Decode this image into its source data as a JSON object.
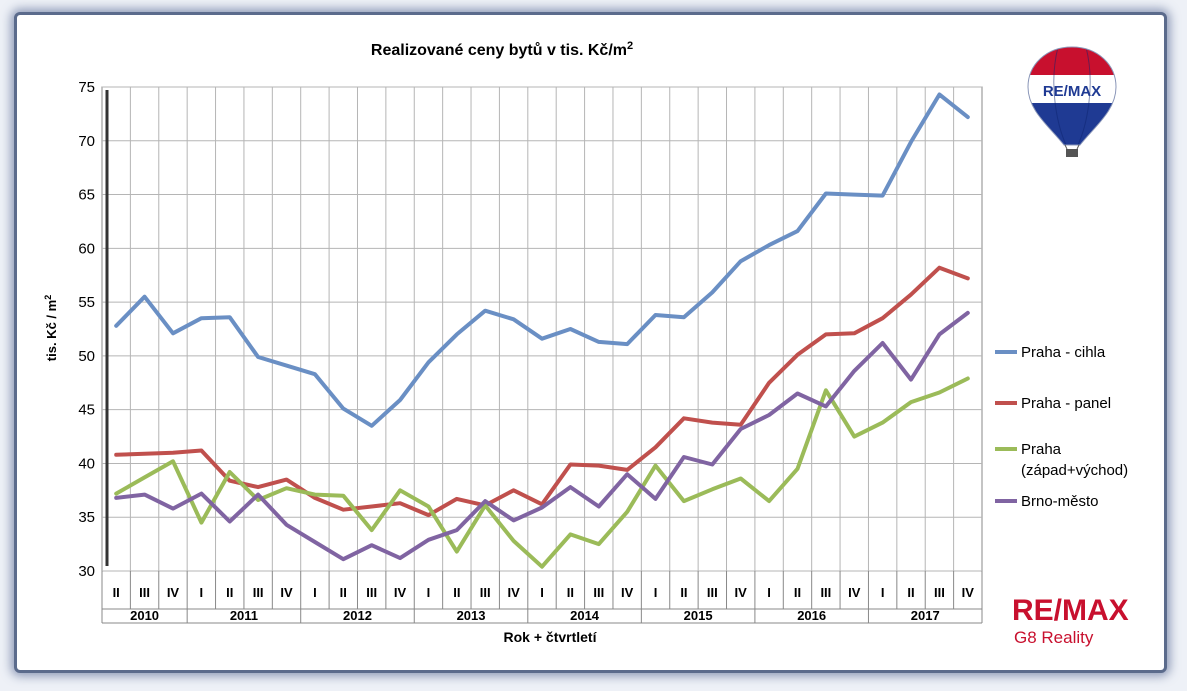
{
  "chart_data": {
    "type": "line",
    "title": "Realizované ceny bytů v tis. Kč/m",
    "title_sup": "2",
    "ylabel": "tis. Kč / m",
    "ylabel_sup": "2",
    "xlabel": "Rok + čtvrtletí",
    "ylim": [
      30,
      75
    ],
    "yticks": [
      30,
      35,
      40,
      45,
      50,
      55,
      60,
      65,
      70,
      75
    ],
    "grid": true,
    "legend_position": "right",
    "quarters": [
      "II",
      "III",
      "IV",
      "I",
      "II",
      "III",
      "IV",
      "I",
      "II",
      "III",
      "IV",
      "I",
      "II",
      "III",
      "IV",
      "I",
      "II",
      "III",
      "IV",
      "I",
      "II",
      "III",
      "IV",
      "I",
      "II",
      "III",
      "IV",
      "I",
      "II",
      "III",
      "IV"
    ],
    "years": [
      {
        "label": "2010",
        "quarters": 3
      },
      {
        "label": "2011",
        "quarters": 4
      },
      {
        "label": "2012",
        "quarters": 4
      },
      {
        "label": "2013",
        "quarters": 4
      },
      {
        "label": "2014",
        "quarters": 4
      },
      {
        "label": "2015",
        "quarters": 4
      },
      {
        "label": "2016",
        "quarters": 4
      },
      {
        "label": "2017",
        "quarters": 4
      }
    ],
    "series": [
      {
        "name": "Praha - cihla",
        "color": "#6a8fc4",
        "values": [
          52.8,
          55.5,
          52.1,
          53.5,
          53.6,
          49.9,
          49.1,
          48.3,
          45.1,
          43.5,
          45.9,
          49.4,
          52.0,
          54.2,
          53.4,
          51.6,
          52.5,
          51.3,
          51.1,
          53.8,
          53.6,
          55.9,
          58.8,
          60.3,
          61.6,
          65.1,
          65.0,
          64.9,
          69.9,
          74.3,
          72.2
        ]
      },
      {
        "name": "Praha - panel",
        "color": "#c0504d",
        "values": [
          40.8,
          40.9,
          41.0,
          41.2,
          38.4,
          37.8,
          38.5,
          36.8,
          35.7,
          36.0,
          36.3,
          35.2,
          36.7,
          36.1,
          37.5,
          36.2,
          39.9,
          39.8,
          39.4,
          41.5,
          44.2,
          43.8,
          43.6,
          47.5,
          50.1,
          52.0,
          52.1,
          53.5,
          55.7,
          58.2,
          57.2
        ]
      },
      {
        "name": "Praha",
        "name_line2": "(západ+východ)",
        "color": "#9bbb59",
        "values": [
          37.2,
          38.7,
          40.2,
          34.5,
          39.2,
          36.6,
          37.7,
          37.1,
          37.0,
          33.8,
          37.5,
          36.0,
          31.8,
          36.1,
          32.8,
          30.4,
          33.4,
          32.5,
          35.5,
          39.8,
          36.5,
          37.6,
          38.6,
          36.5,
          39.5,
          46.8,
          42.5,
          43.8,
          45.7,
          46.6,
          47.9
        ]
      },
      {
        "name": "Brno-město",
        "color": "#8064a2",
        "values": [
          36.8,
          37.1,
          35.8,
          37.2,
          34.6,
          37.1,
          34.3,
          32.7,
          31.1,
          32.4,
          31.2,
          32.9,
          33.8,
          36.5,
          34.7,
          35.9,
          37.8,
          36.0,
          39.0,
          36.7,
          40.6,
          39.9,
          43.2,
          44.5,
          46.5,
          45.3,
          48.6,
          51.2,
          47.8,
          52.0,
          54.0
        ]
      }
    ]
  },
  "brand": {
    "name": "RE/MAX",
    "sub": "G8 Reality",
    "balloon_label": "RE/MAX",
    "red": "#c8102e",
    "blue": "#1f3a93"
  }
}
